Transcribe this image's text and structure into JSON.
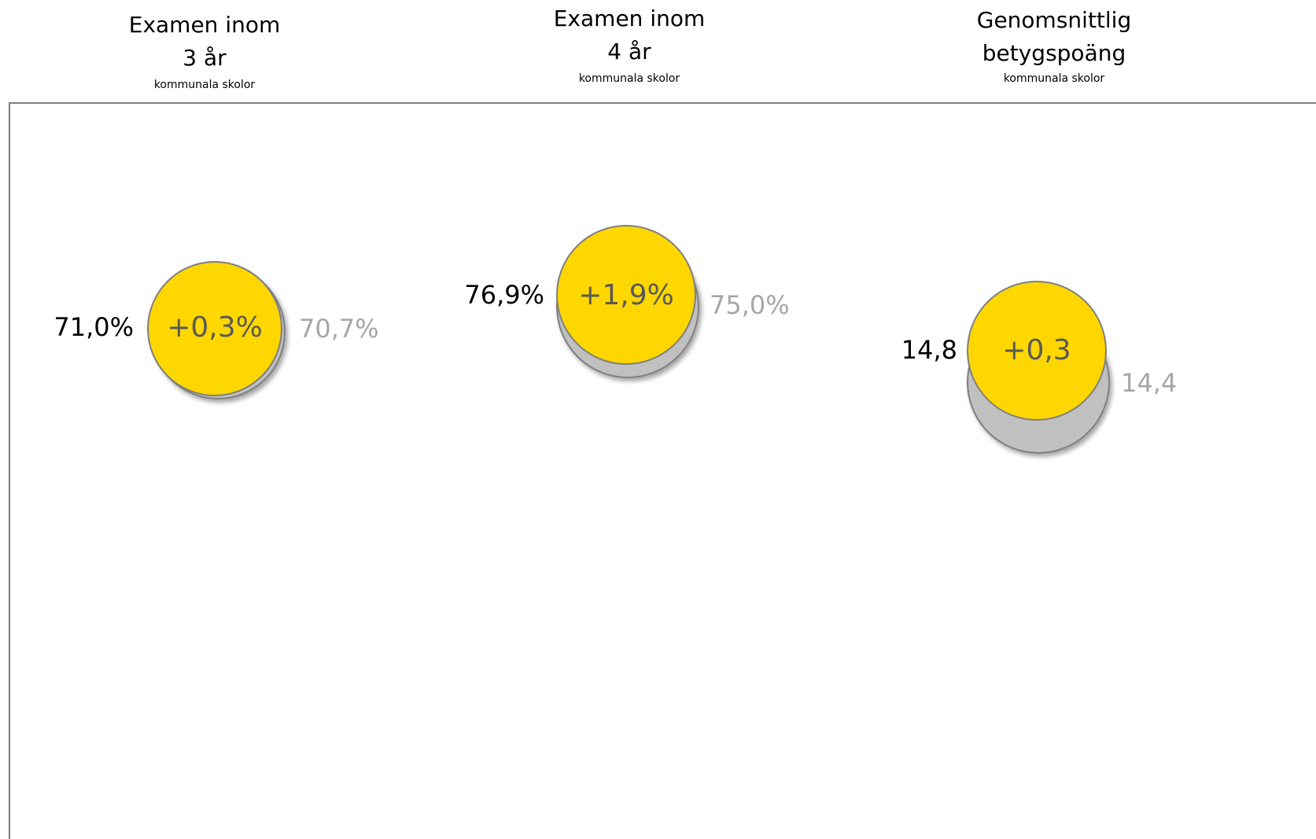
{
  "panels": [
    {
      "title": [
        "Examen inom",
        "3 år"
      ],
      "subtitle": "kommunala skolor",
      "current": "71,0%",
      "change": "+0,3%",
      "previous": "70,7%"
    },
    {
      "title": [
        "Examen inom",
        "4 år"
      ],
      "subtitle": "kommunala skolor",
      "current": "76,9%",
      "change": "+1,9%",
      "previous": "75,0%"
    },
    {
      "title": [
        "Genomsnittlig",
        "betygspoäng"
      ],
      "subtitle": "kommunala skolor",
      "current": "14,8",
      "change": "+0,3",
      "previous": "14,4"
    }
  ]
}
